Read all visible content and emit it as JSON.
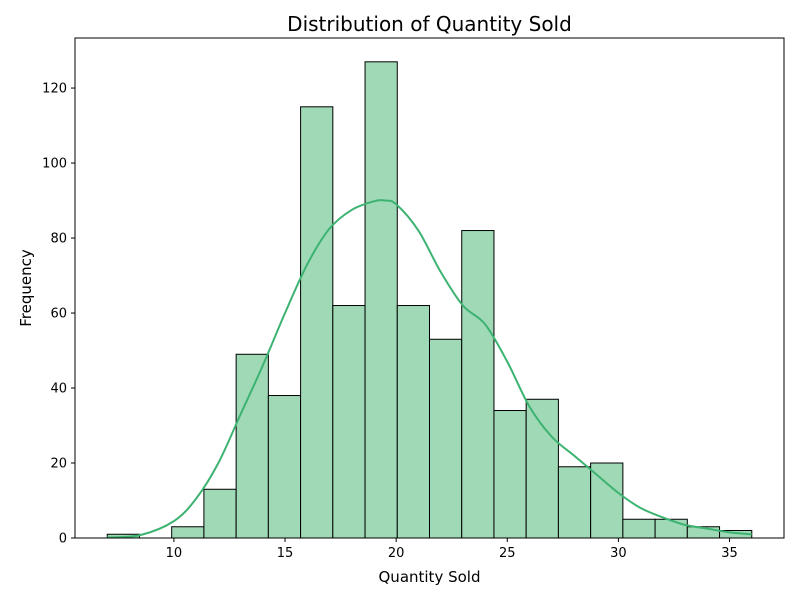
{
  "chart_data": {
    "type": "bar",
    "subtype": "histogram with kde",
    "title": "Distribution of Quantity Sold",
    "xlabel": "Quantity Sold",
    "ylabel": "Frequency",
    "xlim": [
      5.55,
      37.45
    ],
    "ylim": [
      0,
      133.35
    ],
    "xticks": [
      10,
      15,
      20,
      25,
      30,
      35
    ],
    "yticks": [
      0,
      20,
      40,
      60,
      80,
      100,
      120
    ],
    "grid": false,
    "bar_color": "#9fd9b6",
    "edge_color": "#000000",
    "kde_color": "#3cb371",
    "bins": [
      {
        "x0": 7.0,
        "x1": 8.45,
        "count": 1
      },
      {
        "x0": 8.45,
        "x1": 9.9,
        "count": 0
      },
      {
        "x0": 9.9,
        "x1": 11.35,
        "count": 3
      },
      {
        "x0": 11.35,
        "x1": 12.8,
        "count": 13
      },
      {
        "x0": 12.8,
        "x1": 14.25,
        "count": 49
      },
      {
        "x0": 14.25,
        "x1": 15.7,
        "count": 38
      },
      {
        "x0": 15.7,
        "x1": 17.15,
        "count": 115
      },
      {
        "x0": 17.15,
        "x1": 18.6,
        "count": 62
      },
      {
        "x0": 18.6,
        "x1": 20.05,
        "count": 127
      },
      {
        "x0": 20.05,
        "x1": 21.5,
        "count": 62
      },
      {
        "x0": 21.5,
        "x1": 22.95,
        "count": 53
      },
      {
        "x0": 22.95,
        "x1": 24.4,
        "count": 82
      },
      {
        "x0": 24.4,
        "x1": 25.85,
        "count": 34
      },
      {
        "x0": 25.85,
        "x1": 27.3,
        "count": 37
      },
      {
        "x0": 27.3,
        "x1": 28.75,
        "count": 19
      },
      {
        "x0": 28.75,
        "x1": 30.2,
        "count": 20
      },
      {
        "x0": 30.2,
        "x1": 31.65,
        "count": 5
      },
      {
        "x0": 31.65,
        "x1": 33.1,
        "count": 5
      },
      {
        "x0": 33.1,
        "x1": 34.55,
        "count": 3
      },
      {
        "x0": 34.55,
        "x1": 36.0,
        "count": 2
      }
    ],
    "kde": {
      "x": [
        7.0,
        8.5,
        10.0,
        11.0,
        12.0,
        13.0,
        14.0,
        15.0,
        16.0,
        17.0,
        18.0,
        19.0,
        19.5,
        20.0,
        21.0,
        22.0,
        23.0,
        24.0,
        25.0,
        26.0,
        27.0,
        28.0,
        29.0,
        30.0,
        31.0,
        32.0,
        33.0,
        34.0,
        35.0,
        36.0
      ],
      "y": [
        0.1,
        0.8,
        4.5,
        10.5,
        20.0,
        33.0,
        46.0,
        60.0,
        73.0,
        82.5,
        87.5,
        89.8,
        90.0,
        89.0,
        82.0,
        71.0,
        62.0,
        57.0,
        47.0,
        35.0,
        27.0,
        22.0,
        17.0,
        12.0,
        8.0,
        5.5,
        3.5,
        2.5,
        1.5,
        1.0
      ]
    }
  }
}
